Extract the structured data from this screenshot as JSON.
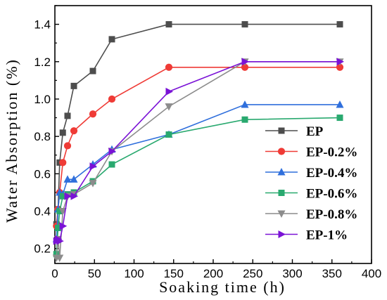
{
  "chart_data": {
    "type": "line",
    "xlabel": "Soaking time (h)",
    "ylabel": "Water Absorption (%)",
    "xlim": [
      0,
      400
    ],
    "ylim": [
      0.12,
      1.5
    ],
    "x_ticks": [
      "0",
      "50",
      "100",
      "150",
      "200",
      "250",
      "300",
      "350",
      "400"
    ],
    "y_ticks": [
      "0.2",
      "0.4",
      "0.6",
      "0.8",
      "1.0",
      "1.2",
      "1.4"
    ],
    "x_tick_values": [
      0,
      50,
      100,
      150,
      200,
      250,
      300,
      350,
      400
    ],
    "y_tick_values": [
      0.2,
      0.4,
      0.6,
      0.8,
      1.0,
      1.2,
      1.4
    ],
    "grid": false,
    "legend_position": "center-right",
    "series": [
      {
        "name": "EP",
        "color": "#4d4d4d",
        "marker": "square",
        "points": [
          [
            2,
            0.33
          ],
          [
            4,
            0.41
          ],
          [
            6,
            0.66
          ],
          [
            10,
            0.82
          ],
          [
            16,
            0.91
          ],
          [
            24,
            1.07
          ],
          [
            48,
            1.15
          ],
          [
            72,
            1.32
          ],
          [
            144,
            1.4
          ],
          [
            240,
            1.4
          ],
          [
            360,
            1.4
          ]
        ]
      },
      {
        "name": "EP-0.2%",
        "color": "#ef3b36",
        "marker": "circle",
        "points": [
          [
            2,
            0.32
          ],
          [
            4,
            0.41
          ],
          [
            6,
            0.5
          ],
          [
            10,
            0.66
          ],
          [
            16,
            0.75
          ],
          [
            24,
            0.83
          ],
          [
            48,
            0.92
          ],
          [
            72,
            1.0
          ],
          [
            144,
            1.17
          ],
          [
            240,
            1.17
          ],
          [
            360,
            1.17
          ]
        ]
      },
      {
        "name": "EP-0.4%",
        "color": "#2f6fdc",
        "marker": "triangle-up",
        "points": [
          [
            2,
            0.25
          ],
          [
            4,
            0.41
          ],
          [
            6,
            0.5
          ],
          [
            10,
            0.49
          ],
          [
            16,
            0.57
          ],
          [
            24,
            0.57
          ],
          [
            48,
            0.65
          ],
          [
            72,
            0.73
          ],
          [
            144,
            0.81
          ],
          [
            240,
            0.97
          ],
          [
            360,
            0.97
          ]
        ]
      },
      {
        "name": "EP-0.6%",
        "color": "#29a96f",
        "marker": "square",
        "points": [
          [
            2,
            0.17
          ],
          [
            4,
            0.31
          ],
          [
            6,
            0.4
          ],
          [
            10,
            0.48
          ],
          [
            16,
            0.49
          ],
          [
            24,
            0.5
          ],
          [
            48,
            0.56
          ],
          [
            72,
            0.65
          ],
          [
            144,
            0.81
          ],
          [
            240,
            0.89
          ],
          [
            360,
            0.9
          ]
        ]
      },
      {
        "name": "EP-0.8%",
        "color": "#8c8c8c",
        "marker": "triangle-down",
        "points": [
          [
            2,
            0.15
          ],
          [
            4,
            0.25
          ],
          [
            6,
            0.15
          ],
          [
            10,
            0.4
          ],
          [
            16,
            0.48
          ],
          [
            24,
            0.49
          ],
          [
            48,
            0.55
          ],
          [
            72,
            0.72
          ],
          [
            144,
            0.96
          ],
          [
            240,
            1.2
          ],
          [
            360,
            1.2
          ]
        ]
      },
      {
        "name": "EP-1%",
        "color": "#7a12d6",
        "marker": "triangle-right",
        "points": [
          [
            2,
            0.24
          ],
          [
            4,
            0.25
          ],
          [
            6,
            0.24
          ],
          [
            10,
            0.32
          ],
          [
            16,
            0.48
          ],
          [
            24,
            0.48
          ],
          [
            48,
            0.64
          ],
          [
            72,
            0.72
          ],
          [
            144,
            1.04
          ],
          [
            240,
            1.2
          ],
          [
            360,
            1.2
          ]
        ]
      }
    ]
  }
}
